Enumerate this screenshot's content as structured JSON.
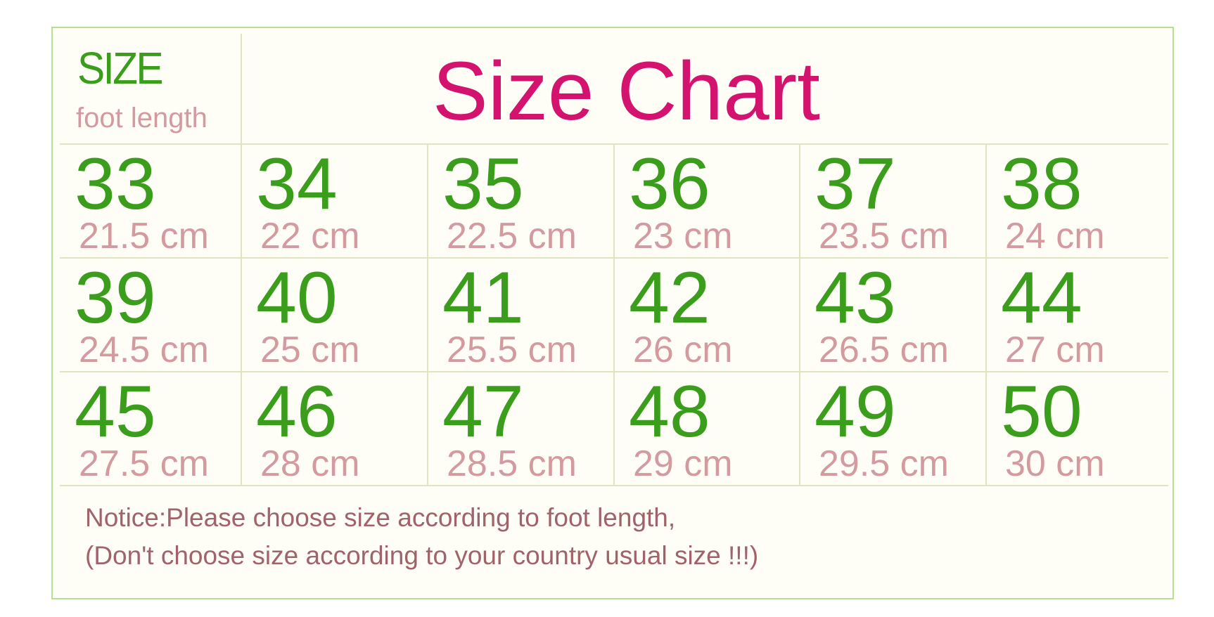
{
  "header": {
    "size_label": "SIZE",
    "foot_length_label": "foot length",
    "title": "Size Chart"
  },
  "sizes": [
    {
      "size": "33",
      "length": "21.5 cm"
    },
    {
      "size": "34",
      "length": "22 cm"
    },
    {
      "size": "35",
      "length": "22.5 cm"
    },
    {
      "size": "36",
      "length": "23 cm"
    },
    {
      "size": "37",
      "length": "23.5 cm"
    },
    {
      "size": "38",
      "length": "24 cm"
    },
    {
      "size": "39",
      "length": "24.5 cm"
    },
    {
      "size": "40",
      "length": "25 cm"
    },
    {
      "size": "41",
      "length": "25.5 cm"
    },
    {
      "size": "42",
      "length": "26 cm"
    },
    {
      "size": "43",
      "length": "26.5 cm"
    },
    {
      "size": "44",
      "length": "27 cm"
    },
    {
      "size": "45",
      "length": "27.5 cm"
    },
    {
      "size": "46",
      "length": "28 cm"
    },
    {
      "size": "47",
      "length": "28.5 cm"
    },
    {
      "size": "48",
      "length": "29 cm"
    },
    {
      "size": "49",
      "length": "29.5 cm"
    },
    {
      "size": "50",
      "length": "30 cm"
    }
  ],
  "notice": {
    "line1": "Notice:Please choose size according to foot length,",
    "line2": "(Don't choose size according to your country usual size !!!)"
  },
  "colors": {
    "size_number": "#3a9d1c",
    "length": "#d39aa0",
    "title": "#d4136f",
    "notice": "#a0636a",
    "border": "#b6df92"
  }
}
